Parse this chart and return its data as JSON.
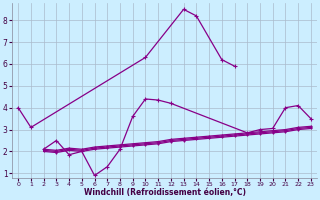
{
  "xlabel": "Windchill (Refroidissement éolien,°C)",
  "background_color": "#cceeff",
  "grid_color": "#aabbcc",
  "line_color": "#880088",
  "x": [
    0,
    1,
    2,
    3,
    4,
    5,
    6,
    7,
    8,
    9,
    10,
    11,
    12,
    13,
    14,
    15,
    16,
    17,
    18,
    19,
    20,
    21,
    22,
    23
  ],
  "xlim": [
    -0.5,
    23.5
  ],
  "ylim": [
    0.8,
    8.8
  ],
  "yticks": [
    1,
    2,
    3,
    4,
    5,
    6,
    7,
    8
  ],
  "xticks": [
    0,
    1,
    2,
    3,
    4,
    5,
    6,
    7,
    8,
    9,
    10,
    11,
    12,
    13,
    14,
    15,
    16,
    17,
    18,
    19,
    20,
    21,
    22,
    23
  ],
  "series": [
    [
      4.0,
      3.1,
      null,
      null,
      null,
      null,
      null,
      null,
      null,
      null,
      6.3,
      null,
      null,
      8.5,
      8.2,
      null,
      6.2,
      5.9,
      null,
      null,
      null,
      null,
      null,
      null
    ],
    [
      null,
      null,
      2.1,
      2.5,
      1.85,
      2.0,
      0.9,
      1.3,
      2.1,
      3.6,
      4.4,
      4.35,
      4.2,
      null,
      null,
      null,
      null,
      null,
      2.85,
      3.0,
      3.05,
      4.0,
      4.1,
      3.5
    ],
    [
      null,
      null,
      2.05,
      2.0,
      2.1,
      2.05,
      2.15,
      2.2,
      2.25,
      2.3,
      2.35,
      2.4,
      2.5,
      2.55,
      2.6,
      2.65,
      2.7,
      2.75,
      2.8,
      2.85,
      2.9,
      2.95,
      3.05,
      3.1
    ],
    [
      null,
      null,
      2.1,
      2.05,
      2.15,
      2.1,
      2.2,
      2.25,
      2.3,
      2.35,
      2.4,
      2.45,
      2.55,
      2.6,
      2.65,
      2.7,
      2.75,
      2.8,
      2.85,
      2.9,
      2.95,
      3.0,
      3.1,
      3.15
    ],
    [
      null,
      null,
      2.0,
      1.95,
      2.05,
      2.0,
      2.1,
      2.15,
      2.2,
      2.25,
      2.3,
      2.35,
      2.45,
      2.5,
      2.55,
      2.6,
      2.65,
      2.7,
      2.75,
      2.8,
      2.85,
      2.9,
      3.0,
      3.05
    ]
  ]
}
